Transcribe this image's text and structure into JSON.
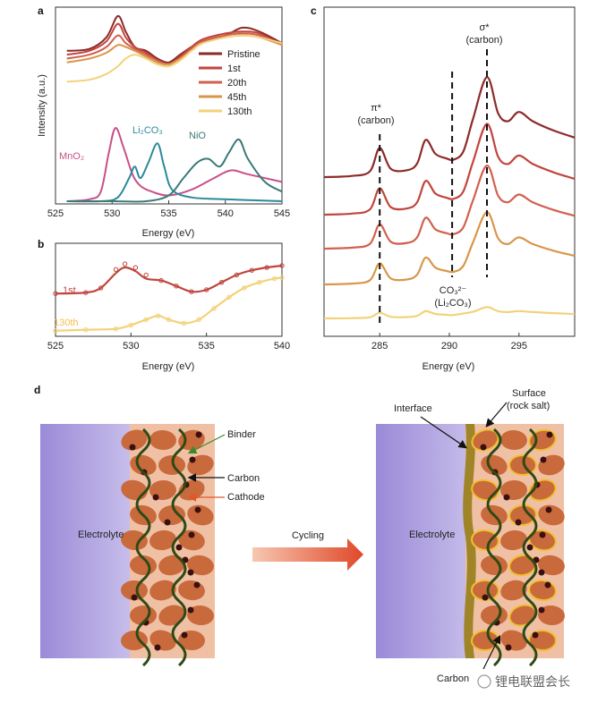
{
  "colors": {
    "pristine": "#8e2a2a",
    "c1": "#c0463e",
    "c20": "#d2604e",
    "c45": "#d9964a",
    "c130": "#f2d27a",
    "mno2": "#c8508a",
    "li2co3": "#2a8a9a",
    "nio": "#3a7a78",
    "cathode": "#c86a3c",
    "binder": "#2e4a14",
    "electrolyte": "#a99ad8",
    "interface": "#8a6a1e",
    "surface": "#f0c030",
    "arrow": "#e0583a"
  },
  "panels": {
    "a": {
      "label": "a",
      "ylabel": "Intensity (a.u.)",
      "xlabel": "Energy (eV)",
      "ticks": [
        "525",
        "530",
        "535",
        "540",
        "545"
      ]
    },
    "b": {
      "label": "b",
      "xlabel": "Energy (eV)",
      "ticks": [
        "525",
        "530",
        "535",
        "540"
      ]
    },
    "c": {
      "label": "c",
      "xlabel": "Energy (eV)",
      "ticks": [
        "285",
        "290",
        "295"
      ]
    },
    "d": {
      "label": "d"
    }
  },
  "annotations_a": {
    "mno2": "MnO₂",
    "li2co3": "Li₂CO₃",
    "nio": "NiO"
  },
  "annotations_b": {
    "first": "1st",
    "last": "130th"
  },
  "annotations_c": {
    "pi_star": "π*",
    "pi_sub": "(carbon)",
    "sigma_star": "σ*",
    "sigma_sub": "(carbon)",
    "co3": "CO₃²⁻",
    "co3_sub": "(Li₂CO₃)"
  },
  "schematic": {
    "binder": "Binder",
    "carbon": "Carbon",
    "cathode": "Cathode",
    "electrolyte_left": "Electrolyte",
    "cycling": "Cycling",
    "electrolyte_right": "Electrolyte",
    "interface": "Interface",
    "surface": "Surface",
    "surface_sub": "(rock salt)",
    "carbon_bottom": "Carbon"
  },
  "watermark": "锂电联盟会长",
  "chart_data": [
    {
      "panel": "a",
      "type": "line",
      "ylabel": "Intensity (a.u.)",
      "xlabel": "Energy (eV)",
      "xlim": [
        525,
        545
      ],
      "legend": "top-right",
      "series": [
        {
          "name": "Pristine",
          "color": "#8e2a2a",
          "x": [
            526,
            528,
            529.5,
            530.5,
            531.2,
            532,
            533,
            534,
            535,
            536,
            537,
            538,
            540,
            541.5,
            543,
            545
          ],
          "y": [
            0.78,
            0.79,
            0.85,
            0.96,
            0.88,
            0.8,
            0.78,
            0.74,
            0.72,
            0.76,
            0.8,
            0.83,
            0.86,
            0.9,
            0.88,
            0.82
          ]
        },
        {
          "name": "1st",
          "color": "#c0463e",
          "x": [
            526,
            528,
            529.5,
            530.5,
            531.2,
            532,
            533,
            534,
            535,
            536,
            537,
            538,
            540,
            541.5,
            543,
            545
          ],
          "y": [
            0.76,
            0.78,
            0.83,
            0.92,
            0.85,
            0.8,
            0.77,
            0.73,
            0.71,
            0.75,
            0.8,
            0.84,
            0.87,
            0.88,
            0.87,
            0.81
          ]
        },
        {
          "name": "20th",
          "color": "#d2604e",
          "x": [
            526,
            528,
            529.5,
            530.5,
            531.2,
            532,
            533,
            534,
            535,
            536,
            537,
            538,
            540,
            541.5,
            543,
            545
          ],
          "y": [
            0.74,
            0.76,
            0.8,
            0.86,
            0.82,
            0.79,
            0.76,
            0.73,
            0.71,
            0.74,
            0.79,
            0.83,
            0.86,
            0.87,
            0.86,
            0.81
          ]
        },
        {
          "name": "45th",
          "color": "#d9964a",
          "x": [
            526,
            528,
            529.5,
            530.5,
            531.2,
            532,
            533,
            534,
            535,
            536,
            537,
            538,
            540,
            541.5,
            543,
            545
          ],
          "y": [
            0.72,
            0.74,
            0.77,
            0.81,
            0.8,
            0.78,
            0.75,
            0.72,
            0.71,
            0.74,
            0.78,
            0.82,
            0.85,
            0.86,
            0.85,
            0.81
          ]
        },
        {
          "name": "130th",
          "color": "#f2d27a",
          "x": [
            526,
            528,
            529.5,
            530.5,
            531.2,
            532,
            533,
            534,
            535,
            536,
            537,
            538,
            540,
            541.5,
            543,
            545
          ],
          "y": [
            0.62,
            0.63,
            0.66,
            0.7,
            0.74,
            0.76,
            0.74,
            0.71,
            0.7,
            0.73,
            0.78,
            0.82,
            0.85,
            0.86,
            0.85,
            0.82
          ]
        },
        {
          "name": "MnO₂",
          "color": "#c8508a",
          "x": [
            526,
            528,
            529,
            529.7,
            530.3,
            531,
            531.8,
            532.5,
            533.5,
            535,
            537,
            539,
            540.5,
            542,
            545
          ],
          "y": [
            0.0,
            0.01,
            0.05,
            0.25,
            0.38,
            0.28,
            0.14,
            0.08,
            0.05,
            0.03,
            0.06,
            0.12,
            0.16,
            0.14,
            0.1
          ]
        },
        {
          "name": "Li₂CO₃",
          "color": "#2a8a9a",
          "x": [
            526,
            529,
            530.5,
            531.5,
            532,
            532.5,
            533.2,
            534,
            534.6,
            535.3,
            537,
            540,
            545
          ],
          "y": [
            0.0,
            0.0,
            0.02,
            0.12,
            0.18,
            0.12,
            0.2,
            0.3,
            0.18,
            0.06,
            0.02,
            0.01,
            0.0
          ]
        },
        {
          "name": "NiO",
          "color": "#3a7a78",
          "x": [
            526,
            530,
            533,
            535,
            536.3,
            537.5,
            538.5,
            539.5,
            540.3,
            541.2,
            542,
            543.5,
            545
          ],
          "y": [
            0.0,
            0.0,
            0.0,
            0.03,
            0.12,
            0.2,
            0.22,
            0.18,
            0.25,
            0.32,
            0.22,
            0.1,
            0.05
          ]
        }
      ]
    },
    {
      "panel": "b",
      "type": "line",
      "xlabel": "Energy (eV)",
      "xlim": [
        525,
        540
      ],
      "series": [
        {
          "name": "1st",
          "color": "#c0463e",
          "x": [
            525,
            527,
            528,
            529,
            529.6,
            530.3,
            531,
            532,
            533,
            534,
            535,
            536,
            537,
            538,
            539,
            540
          ],
          "y": [
            0.46,
            0.47,
            0.52,
            0.68,
            0.74,
            0.7,
            0.62,
            0.6,
            0.54,
            0.48,
            0.5,
            0.58,
            0.66,
            0.71,
            0.74,
            0.76
          ]
        },
        {
          "name": "130th",
          "color": "#f2d27a",
          "x": [
            525,
            527,
            529,
            530,
            531,
            531.8,
            532.5,
            533.5,
            534.5,
            535.5,
            536.5,
            537.5,
            538.5,
            539.5,
            540
          ],
          "y": [
            0.06,
            0.07,
            0.08,
            0.12,
            0.18,
            0.22,
            0.18,
            0.14,
            0.18,
            0.3,
            0.42,
            0.52,
            0.58,
            0.62,
            0.63
          ]
        }
      ]
    },
    {
      "panel": "c",
      "type": "line",
      "xlabel": "Energy (eV)",
      "xlim": [
        281,
        299
      ],
      "series": [
        {
          "name": "Pristine",
          "color": "#8e2a2a"
        },
        {
          "name": "1st",
          "color": "#c0463e"
        },
        {
          "name": "20th",
          "color": "#d2604e"
        },
        {
          "name": "45th",
          "color": "#d9964a"
        },
        {
          "name": "130th",
          "color": "#f2d27a"
        }
      ],
      "markers": [
        285,
        290.2,
        292.7
      ]
    }
  ]
}
